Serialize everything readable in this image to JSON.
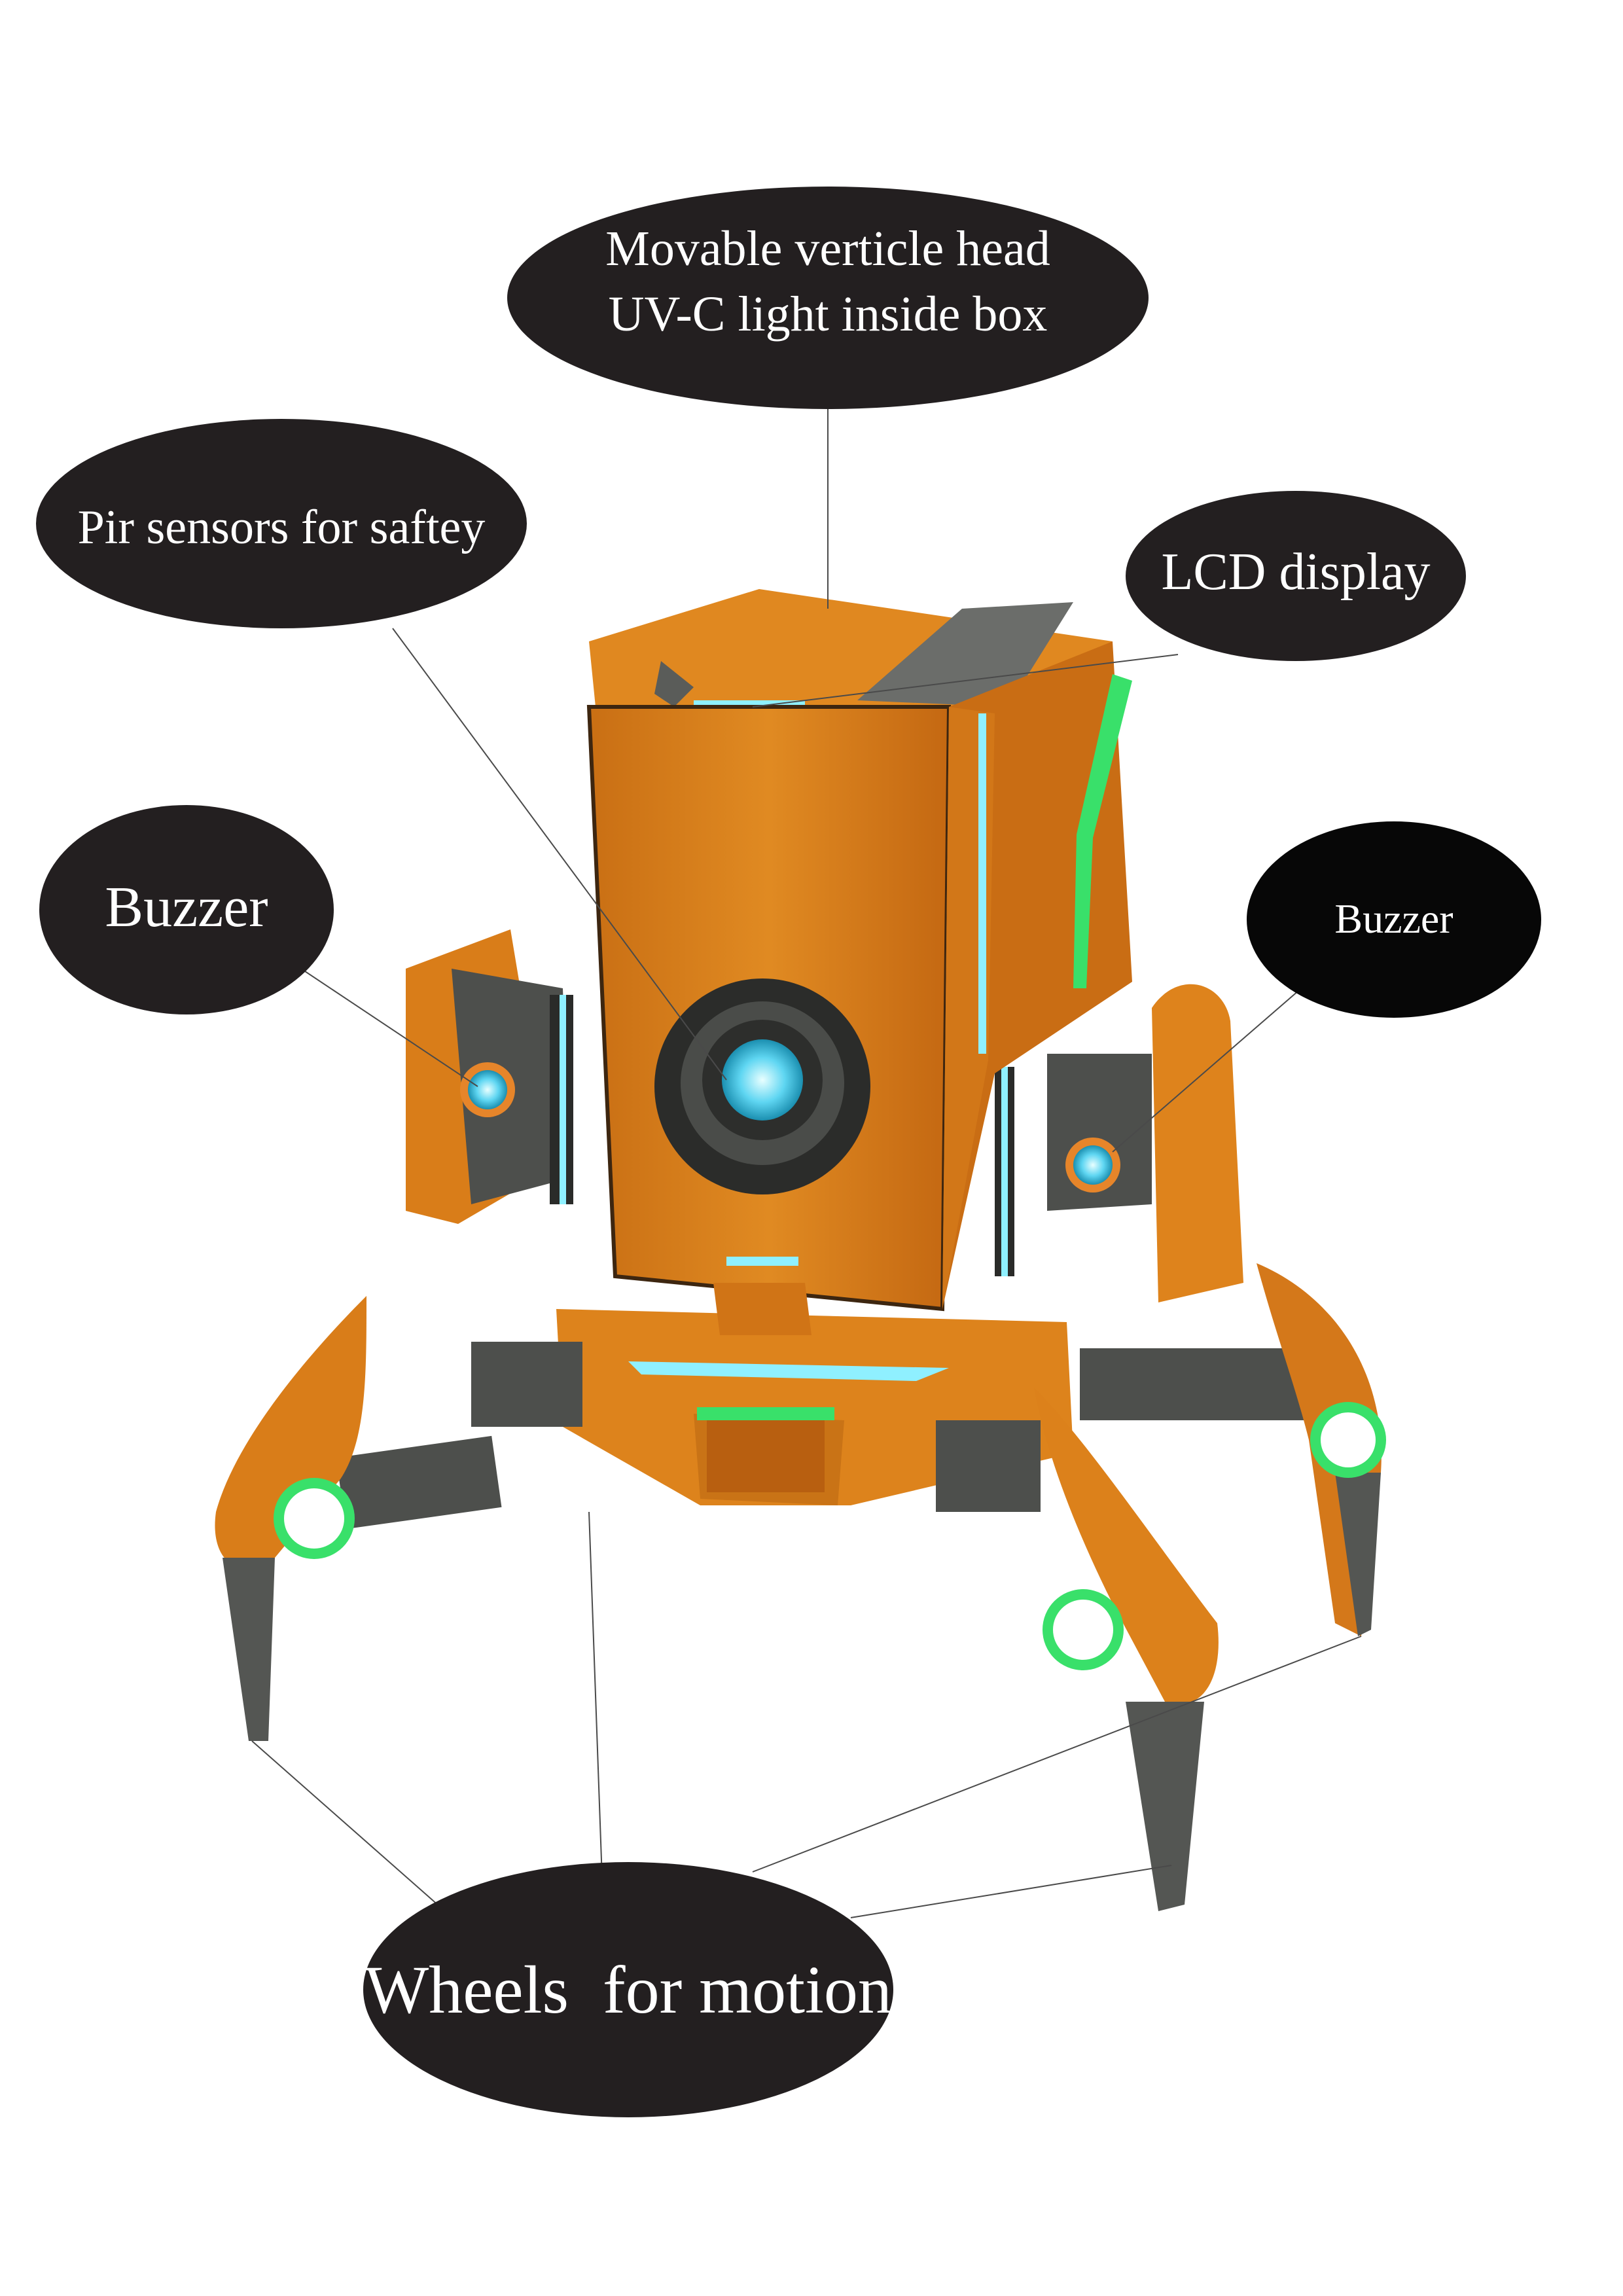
{
  "callouts": {
    "head": {
      "line1": "Movable verticle head",
      "line2": "UV-C light inside box"
    },
    "pir": {
      "label": "Pir sensors for saftey"
    },
    "lcd": {
      "label": "LCD display"
    },
    "buzzer_left": {
      "label": "Buzzer"
    },
    "buzzer_right": {
      "label": "Buzzer"
    },
    "wheels": {
      "label": "Wheels  for motion"
    }
  },
  "colors": {
    "bubble": "#231f20",
    "body_orange": "#e48a1e",
    "body_orange_dark": "#b8620f",
    "joint_grey": "#4d4f4c",
    "glow_green": "#39e06a",
    "glow_cyan": "#8ff0ff"
  }
}
